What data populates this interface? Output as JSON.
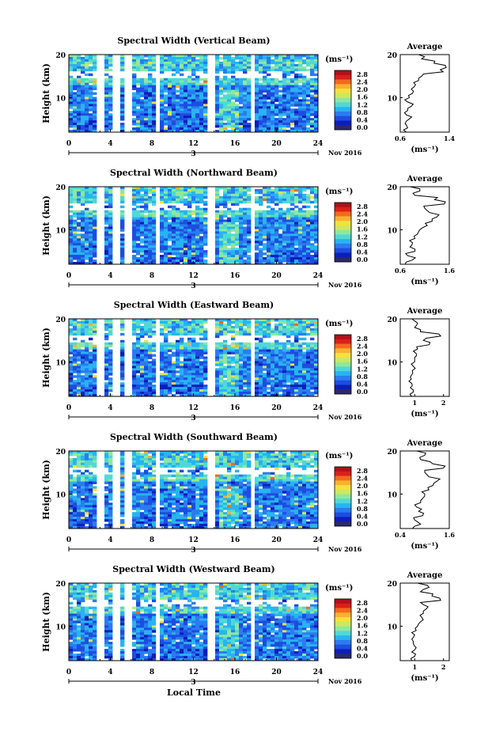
{
  "page": {
    "xlabel_bottom": "Local Time",
    "date_label": "Nov 2016",
    "day_label": "3"
  },
  "colorbar": {
    "unit": "(ms⁻¹)",
    "ticks": [
      "2.8",
      "2.4",
      "2.0",
      "1.6",
      "1.2",
      "0.8",
      "0.4",
      "0.0"
    ],
    "colors": [
      "#2a2a6a",
      "#0a1fb8",
      "#1d4de0",
      "#2a7cf0",
      "#27b4f0",
      "#4fd9d6",
      "#8fe89a",
      "#cde860",
      "#f6e03c",
      "#fab030",
      "#f26a1e",
      "#dc1f1a",
      "#b0101a"
    ]
  },
  "panels": [
    {
      "title": "Spectral Width (Vertical Beam)",
      "avg_title": "Average",
      "avg_unit": "(ms⁻¹)",
      "avg_xticks": [
        "0.6",
        "1.4"
      ]
    },
    {
      "title": "Spectral Width (Northward Beam)",
      "avg_title": "Average",
      "avg_unit": "(ms⁻¹)",
      "avg_xticks": [
        "0.6",
        "1.6"
      ]
    },
    {
      "title": "Spectral Width (Eastward Beam)",
      "avg_title": "Average",
      "avg_unit": "(ms⁻¹)",
      "avg_xticks": [
        "1",
        "2"
      ]
    },
    {
      "title": "Spectral Width (Southward Beam)",
      "avg_title": "Average",
      "avg_unit": "(ms⁻¹)",
      "avg_xticks": [
        "0.4",
        "1.6"
      ]
    },
    {
      "title": "Spectral Width (Westward Beam)",
      "avg_title": "Average",
      "avg_unit": "(ms⁻¹)",
      "avg_xticks": [
        "1",
        "2"
      ]
    }
  ],
  "chart_data": [
    {
      "type": "heatmap",
      "title": "Spectral Width (Vertical Beam)",
      "xlabel": "Local Time",
      "ylabel": "Height (km)",
      "xlim": [
        0,
        24
      ],
      "ylim": [
        2,
        20
      ],
      "xticks": [
        0,
        4,
        8,
        12,
        16,
        20,
        24
      ],
      "yticks": [
        10,
        20
      ],
      "colorbar_range": [
        0.0,
        2.8
      ],
      "data_gaps_hours": [
        [
          3.0,
          3.3
        ],
        [
          4.5,
          4.8
        ],
        [
          5.5,
          5.8
        ],
        [
          8.4,
          8.7
        ],
        [
          13.5,
          13.8
        ],
        [
          17.6,
          17.9
        ]
      ],
      "average_profile": {
        "xlim": [
          0.6,
          1.4
        ],
        "height_km": [
          2,
          3,
          4,
          5,
          6,
          7,
          8,
          9,
          10,
          11,
          12,
          13,
          14,
          15,
          16,
          17,
          18,
          19,
          20
        ],
        "value": [
          0.7,
          0.72,
          0.68,
          0.74,
          0.7,
          0.72,
          0.78,
          0.72,
          0.75,
          0.8,
          0.78,
          0.85,
          0.9,
          0.95,
          1.3,
          1.35,
          1.15,
          0.95,
          0.9
        ]
      }
    },
    {
      "type": "heatmap",
      "title": "Spectral Width (Northward Beam)",
      "xlabel": "Local Time",
      "ylabel": "Height (km)",
      "xlim": [
        0,
        24
      ],
      "ylim": [
        2,
        20
      ],
      "xticks": [
        0,
        4,
        8,
        12,
        16,
        20,
        24
      ],
      "yticks": [
        10,
        20
      ],
      "colorbar_range": [
        0.0,
        2.8
      ],
      "data_gaps_hours": [
        [
          3.0,
          3.3
        ],
        [
          4.5,
          4.8
        ],
        [
          5.5,
          5.8
        ],
        [
          8.4,
          8.7
        ],
        [
          13.5,
          13.8
        ],
        [
          17.6,
          17.9
        ]
      ],
      "average_profile": {
        "xlim": [
          0.6,
          1.6
        ],
        "height_km": [
          2,
          3,
          4,
          5,
          6,
          7,
          8,
          9,
          10,
          11,
          12,
          13,
          14,
          15,
          16,
          17,
          18,
          19,
          20
        ],
        "value": [
          0.7,
          0.85,
          0.75,
          0.9,
          0.8,
          0.85,
          0.9,
          0.95,
          1.0,
          1.15,
          1.25,
          1.35,
          1.2,
          1.1,
          1.5,
          1.3,
          0.9,
          1.0,
          0.8
        ]
      }
    },
    {
      "type": "heatmap",
      "title": "Spectral Width (Eastward Beam)",
      "xlabel": "Local Time",
      "ylabel": "Height (km)",
      "xlim": [
        0,
        24
      ],
      "ylim": [
        2,
        20
      ],
      "xticks": [
        0,
        4,
        8,
        12,
        16,
        20,
        24
      ],
      "yticks": [
        10,
        20
      ],
      "colorbar_range": [
        0.0,
        2.8
      ],
      "data_gaps_hours": [
        [
          3.0,
          3.3
        ],
        [
          4.5,
          4.8
        ],
        [
          5.5,
          5.8
        ],
        [
          8.4,
          8.7
        ],
        [
          13.5,
          13.8
        ],
        [
          17.6,
          17.9
        ]
      ],
      "average_profile": {
        "xlim": [
          0.5,
          2.2
        ],
        "height_km": [
          2,
          3,
          4,
          5,
          6,
          7,
          8,
          9,
          10,
          11,
          12,
          13,
          14,
          15,
          16,
          17,
          18,
          19,
          20
        ],
        "value": [
          0.9,
          0.95,
          0.85,
          0.9,
          0.88,
          0.9,
          0.92,
          0.95,
          1.0,
          1.0,
          1.05,
          1.1,
          1.5,
          1.3,
          1.9,
          1.2,
          1.0,
          1.1,
          0.9
        ]
      }
    },
    {
      "type": "heatmap",
      "title": "Spectral Width (Southward Beam)",
      "xlabel": "Local Time",
      "ylabel": "Height (km)",
      "xlim": [
        0,
        24
      ],
      "ylim": [
        2,
        20
      ],
      "xticks": [
        0,
        4,
        8,
        12,
        16,
        20,
        24
      ],
      "yticks": [
        10,
        20
      ],
      "colorbar_range": [
        0.0,
        2.8
      ],
      "data_gaps_hours": [
        [
          3.0,
          3.3
        ],
        [
          4.5,
          4.8
        ],
        [
          5.5,
          5.8
        ],
        [
          8.4,
          8.7
        ],
        [
          13.5,
          13.8
        ],
        [
          17.6,
          17.9
        ]
      ],
      "average_profile": {
        "xlim": [
          0.4,
          1.6
        ],
        "height_km": [
          2,
          3,
          4,
          5,
          6,
          7,
          8,
          9,
          10,
          11,
          12,
          13,
          14,
          15,
          16,
          17,
          18,
          19,
          20
        ],
        "value": [
          0.7,
          0.9,
          0.75,
          0.95,
          0.85,
          0.8,
          0.9,
          0.95,
          1.0,
          1.1,
          1.2,
          1.3,
          1.1,
          1.0,
          1.45,
          1.2,
          0.9,
          1.0,
          0.8
        ]
      }
    },
    {
      "type": "heatmap",
      "title": "Spectral Width (Westward Beam)",
      "xlabel": "Local Time",
      "ylabel": "Height (km)",
      "xlim": [
        0,
        24
      ],
      "ylim": [
        2,
        20
      ],
      "xticks": [
        0,
        4,
        8,
        12,
        16,
        20,
        24
      ],
      "yticks": [
        10,
        20
      ],
      "colorbar_range": [
        0.0,
        2.8
      ],
      "data_gaps_hours": [
        [
          3.0,
          3.3
        ],
        [
          4.5,
          4.8
        ],
        [
          5.5,
          5.8
        ],
        [
          8.4,
          8.7
        ],
        [
          13.5,
          13.8
        ],
        [
          17.6,
          17.9
        ]
      ],
      "average_profile": {
        "xlim": [
          0.5,
          2.2
        ],
        "height_km": [
          2,
          3,
          4,
          5,
          6,
          7,
          8,
          9,
          10,
          11,
          12,
          13,
          14,
          15,
          16,
          17,
          18,
          19,
          20
        ],
        "value": [
          0.9,
          1.0,
          0.9,
          1.05,
          0.95,
          0.9,
          1.0,
          1.05,
          1.1,
          1.2,
          1.25,
          1.3,
          1.4,
          1.3,
          1.9,
          1.6,
          1.2,
          1.5,
          1.1
        ]
      }
    }
  ]
}
